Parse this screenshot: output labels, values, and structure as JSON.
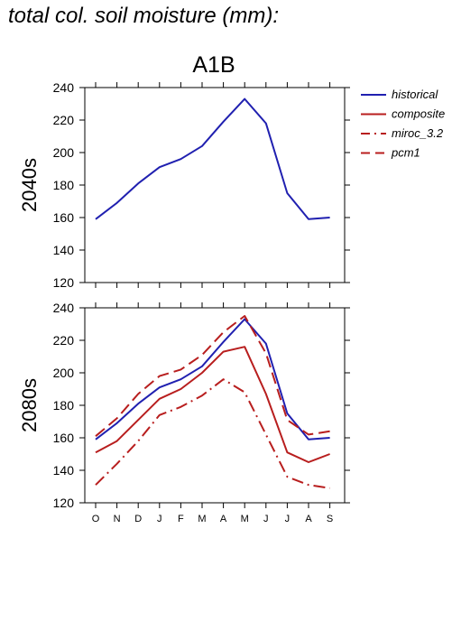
{
  "page": {
    "title": "total col. soil moisture (mm):"
  },
  "chart_data": {
    "type": "line",
    "title": "A1B",
    "categories": [
      "O",
      "N",
      "D",
      "J",
      "F",
      "M",
      "A",
      "M",
      "J",
      "J",
      "A",
      "S"
    ],
    "ylim": [
      120,
      240
    ],
    "yticks": [
      120,
      140,
      160,
      180,
      200,
      220,
      240
    ],
    "legend": {
      "placement": "top-right, outside plot",
      "entries": [
        {
          "name": "historical",
          "color": "#2020b0",
          "dash": "solid"
        },
        {
          "name": "composite",
          "color": "#b81e1e",
          "dash": "solid"
        },
        {
          "name": "miroc_3.2",
          "color": "#b81e1e",
          "dash": "dashdot"
        },
        {
          "name": "pcm1",
          "color": "#b81e1e",
          "dash": "dashed"
        }
      ]
    },
    "panels": [
      {
        "label": "2040s",
        "series": [
          {
            "name": "historical",
            "color": "#2020b0",
            "dash": "solid",
            "values": [
              159,
              169,
              181,
              191,
              196,
              204,
              219,
              233,
              218,
              175,
              159,
              160
            ]
          }
        ]
      },
      {
        "label": "2080s",
        "series": [
          {
            "name": "historical",
            "color": "#2020b0",
            "dash": "solid",
            "values": [
              159,
              169,
              181,
              191,
              196,
              204,
              219,
              233,
              218,
              175,
              159,
              160
            ]
          },
          {
            "name": "composite",
            "color": "#b81e1e",
            "dash": "solid",
            "values": [
              151,
              158,
              171,
              184,
              190,
              200,
              213,
              216,
              187,
              151,
              145,
              150
            ]
          },
          {
            "name": "miroc_3.2",
            "color": "#b81e1e",
            "dash": "dashdot",
            "values": [
              131,
              144,
              158,
              174,
              179,
              186,
              196,
              188,
              162,
              136,
              131,
              129
            ]
          },
          {
            "name": "pcm1",
            "color": "#b81e1e",
            "dash": "dashed",
            "values": [
              161,
              172,
              187,
              198,
              202,
              211,
              225,
              235,
              212,
              171,
              162,
              164
            ]
          }
        ]
      }
    ]
  }
}
